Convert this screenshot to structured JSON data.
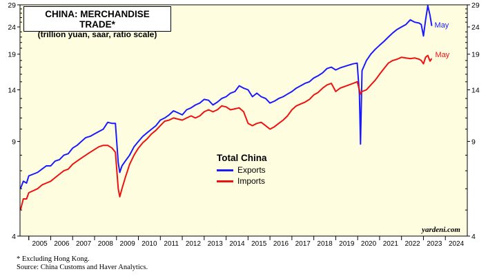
{
  "title_line1": "CHINA: MERCHANDISE TRADE*",
  "title_line2": "(trillion yuan, saar, ratio scale)",
  "legend": {
    "title": "Total China",
    "items": [
      {
        "label": "Exports",
        "color": "#1a1aff"
      },
      {
        "label": "Imports",
        "color": "#ee1111"
      }
    ]
  },
  "end_labels": {
    "exports": "May",
    "imports": "May"
  },
  "footnote_line1": "*  Excluding Hong Kong.",
  "footnote_line2": "Source: China Customs and Haver Analytics.",
  "brand": "yardeni.com",
  "colors": {
    "plot_bg": "#fffde0",
    "exports": "#1a1aff",
    "imports": "#ee1111"
  },
  "chart_data": {
    "type": "line",
    "title": "CHINA: MERCHANDISE TRADE*",
    "subtitle": "(trillion yuan, saar, ratio scale)",
    "y_scale": "log",
    "ylim": [
      4,
      29
    ],
    "y_ticks": [
      4,
      9,
      14,
      19,
      24,
      29
    ],
    "xlim": [
      2004.6,
      2025.0
    ],
    "x_tick_labels": [
      "2005",
      "2006",
      "2007",
      "2008",
      "2009",
      "2010",
      "2011",
      "2012",
      "2013",
      "2014",
      "2015",
      "2016",
      "2017",
      "2018",
      "2019",
      "2020",
      "2021",
      "2022",
      "2023",
      "2024"
    ],
    "legend_position": "center",
    "series": [
      {
        "name": "Exports",
        "color": "#1a1aff",
        "points": [
          [
            2004.62,
            6.0
          ],
          [
            2004.75,
            6.4
          ],
          [
            2004.9,
            6.3
          ],
          [
            2005.0,
            6.7
          ],
          [
            2005.2,
            6.8
          ],
          [
            2005.4,
            6.9
          ],
          [
            2005.6,
            7.1
          ],
          [
            2005.8,
            7.3
          ],
          [
            2006.0,
            7.3
          ],
          [
            2006.2,
            7.6
          ],
          [
            2006.4,
            7.7
          ],
          [
            2006.6,
            8.0
          ],
          [
            2006.8,
            8.1
          ],
          [
            2007.0,
            8.5
          ],
          [
            2007.2,
            8.7
          ],
          [
            2007.4,
            9.0
          ],
          [
            2007.6,
            9.3
          ],
          [
            2007.8,
            9.4
          ],
          [
            2008.0,
            9.6
          ],
          [
            2008.2,
            9.8
          ],
          [
            2008.4,
            10.0
          ],
          [
            2008.6,
            10.6
          ],
          [
            2008.8,
            10.5
          ],
          [
            2008.95,
            10.5
          ],
          [
            2009.08,
            7.5
          ],
          [
            2009.15,
            6.9
          ],
          [
            2009.25,
            7.3
          ],
          [
            2009.4,
            7.6
          ],
          [
            2009.6,
            8.0
          ],
          [
            2009.8,
            8.6
          ],
          [
            2010.0,
            9.0
          ],
          [
            2010.2,
            9.4
          ],
          [
            2010.4,
            9.7
          ],
          [
            2010.6,
            10.0
          ],
          [
            2010.8,
            10.3
          ],
          [
            2011.0,
            10.8
          ],
          [
            2011.2,
            11.0
          ],
          [
            2011.4,
            11.3
          ],
          [
            2011.6,
            11.7
          ],
          [
            2011.8,
            11.5
          ],
          [
            2012.0,
            11.3
          ],
          [
            2012.2,
            11.8
          ],
          [
            2012.4,
            12.0
          ],
          [
            2012.6,
            12.3
          ],
          [
            2012.8,
            12.5
          ],
          [
            2013.0,
            12.9
          ],
          [
            2013.2,
            12.8
          ],
          [
            2013.4,
            12.3
          ],
          [
            2013.6,
            12.6
          ],
          [
            2013.8,
            13.0
          ],
          [
            2014.0,
            13.2
          ],
          [
            2014.2,
            13.6
          ],
          [
            2014.4,
            13.8
          ],
          [
            2014.6,
            14.5
          ],
          [
            2014.8,
            14.2
          ],
          [
            2015.0,
            14.0
          ],
          [
            2015.2,
            13.2
          ],
          [
            2015.4,
            13.6
          ],
          [
            2015.6,
            13.2
          ],
          [
            2015.8,
            13.0
          ],
          [
            2016.0,
            12.5
          ],
          [
            2016.2,
            12.7
          ],
          [
            2016.4,
            13.0
          ],
          [
            2016.6,
            13.2
          ],
          [
            2016.8,
            13.5
          ],
          [
            2017.0,
            13.8
          ],
          [
            2017.2,
            14.2
          ],
          [
            2017.4,
            14.5
          ],
          [
            2017.6,
            14.8
          ],
          [
            2017.8,
            15.0
          ],
          [
            2018.0,
            15.5
          ],
          [
            2018.2,
            15.8
          ],
          [
            2018.4,
            16.2
          ],
          [
            2018.6,
            16.8
          ],
          [
            2018.8,
            17.0
          ],
          [
            2019.0,
            16.6
          ],
          [
            2019.2,
            16.9
          ],
          [
            2019.4,
            17.1
          ],
          [
            2019.6,
            17.3
          ],
          [
            2019.8,
            17.5
          ],
          [
            2019.98,
            17.6
          ],
          [
            2020.08,
            13.5
          ],
          [
            2020.13,
            8.8
          ],
          [
            2020.2,
            16.5
          ],
          [
            2020.4,
            18.0
          ],
          [
            2020.6,
            19.0
          ],
          [
            2020.8,
            19.8
          ],
          [
            2021.0,
            20.5
          ],
          [
            2021.2,
            21.2
          ],
          [
            2021.4,
            22.0
          ],
          [
            2021.6,
            22.8
          ],
          [
            2021.8,
            23.5
          ],
          [
            2022.0,
            24.0
          ],
          [
            2022.2,
            24.5
          ],
          [
            2022.4,
            25.5
          ],
          [
            2022.6,
            25.0
          ],
          [
            2022.8,
            24.8
          ],
          [
            2022.9,
            24.5
          ],
          [
            2023.0,
            22.2
          ],
          [
            2023.1,
            25.5
          ],
          [
            2023.2,
            28.8
          ],
          [
            2023.3,
            26.5
          ],
          [
            2023.38,
            24.2
          ]
        ]
      },
      {
        "name": "Imports",
        "color": "#ee1111",
        "points": [
          [
            2004.62,
            5.0
          ],
          [
            2004.75,
            5.5
          ],
          [
            2004.9,
            5.5
          ],
          [
            2005.0,
            5.8
          ],
          [
            2005.2,
            5.9
          ],
          [
            2005.4,
            6.0
          ],
          [
            2005.6,
            6.2
          ],
          [
            2005.8,
            6.3
          ],
          [
            2006.0,
            6.4
          ],
          [
            2006.2,
            6.6
          ],
          [
            2006.4,
            6.8
          ],
          [
            2006.6,
            7.0
          ],
          [
            2006.8,
            7.1
          ],
          [
            2007.0,
            7.4
          ],
          [
            2007.2,
            7.6
          ],
          [
            2007.4,
            7.8
          ],
          [
            2007.6,
            8.0
          ],
          [
            2007.8,
            8.2
          ],
          [
            2008.0,
            8.4
          ],
          [
            2008.2,
            8.6
          ],
          [
            2008.4,
            8.7
          ],
          [
            2008.6,
            8.7
          ],
          [
            2008.8,
            8.5
          ],
          [
            2008.95,
            8.2
          ],
          [
            2009.08,
            6.0
          ],
          [
            2009.15,
            5.6
          ],
          [
            2009.25,
            6.0
          ],
          [
            2009.4,
            6.6
          ],
          [
            2009.6,
            7.4
          ],
          [
            2009.8,
            8.0
          ],
          [
            2010.0,
            8.5
          ],
          [
            2010.2,
            8.9
          ],
          [
            2010.4,
            9.2
          ],
          [
            2010.6,
            9.6
          ],
          [
            2010.8,
            9.9
          ],
          [
            2011.0,
            10.3
          ],
          [
            2011.2,
            10.7
          ],
          [
            2011.4,
            10.8
          ],
          [
            2011.6,
            11.0
          ],
          [
            2011.8,
            10.9
          ],
          [
            2012.0,
            10.8
          ],
          [
            2012.2,
            11.0
          ],
          [
            2012.4,
            11.2
          ],
          [
            2012.6,
            11.0
          ],
          [
            2012.8,
            11.2
          ],
          [
            2013.0,
            11.6
          ],
          [
            2013.2,
            11.8
          ],
          [
            2013.4,
            11.6
          ],
          [
            2013.6,
            11.8
          ],
          [
            2013.8,
            12.2
          ],
          [
            2014.0,
            12.1
          ],
          [
            2014.2,
            11.8
          ],
          [
            2014.4,
            11.9
          ],
          [
            2014.6,
            12.0
          ],
          [
            2014.8,
            11.6
          ],
          [
            2015.0,
            10.5
          ],
          [
            2015.2,
            10.3
          ],
          [
            2015.4,
            10.5
          ],
          [
            2015.6,
            10.6
          ],
          [
            2015.8,
            10.3
          ],
          [
            2016.0,
            10.0
          ],
          [
            2016.2,
            10.2
          ],
          [
            2016.4,
            10.5
          ],
          [
            2016.6,
            10.8
          ],
          [
            2016.8,
            11.2
          ],
          [
            2017.0,
            11.8
          ],
          [
            2017.2,
            12.2
          ],
          [
            2017.4,
            12.4
          ],
          [
            2017.6,
            12.6
          ],
          [
            2017.8,
            12.9
          ],
          [
            2018.0,
            13.4
          ],
          [
            2018.2,
            13.7
          ],
          [
            2018.4,
            14.2
          ],
          [
            2018.6,
            14.6
          ],
          [
            2018.8,
            14.8
          ],
          [
            2019.0,
            13.8
          ],
          [
            2019.2,
            14.2
          ],
          [
            2019.4,
            14.4
          ],
          [
            2019.6,
            14.6
          ],
          [
            2019.8,
            14.8
          ],
          [
            2019.98,
            15.0
          ],
          [
            2020.08,
            14.0
          ],
          [
            2020.13,
            13.5
          ],
          [
            2020.2,
            13.8
          ],
          [
            2020.4,
            14.0
          ],
          [
            2020.6,
            14.6
          ],
          [
            2020.8,
            15.2
          ],
          [
            2021.0,
            16.0
          ],
          [
            2021.2,
            16.8
          ],
          [
            2021.4,
            17.6
          ],
          [
            2021.6,
            18.0
          ],
          [
            2021.8,
            18.2
          ],
          [
            2022.0,
            18.5
          ],
          [
            2022.2,
            18.4
          ],
          [
            2022.4,
            18.3
          ],
          [
            2022.6,
            18.4
          ],
          [
            2022.8,
            18.2
          ],
          [
            2022.9,
            18.0
          ],
          [
            2023.0,
            17.5
          ],
          [
            2023.1,
            18.5
          ],
          [
            2023.2,
            18.8
          ],
          [
            2023.3,
            17.9
          ],
          [
            2023.38,
            18.3
          ]
        ]
      }
    ]
  }
}
